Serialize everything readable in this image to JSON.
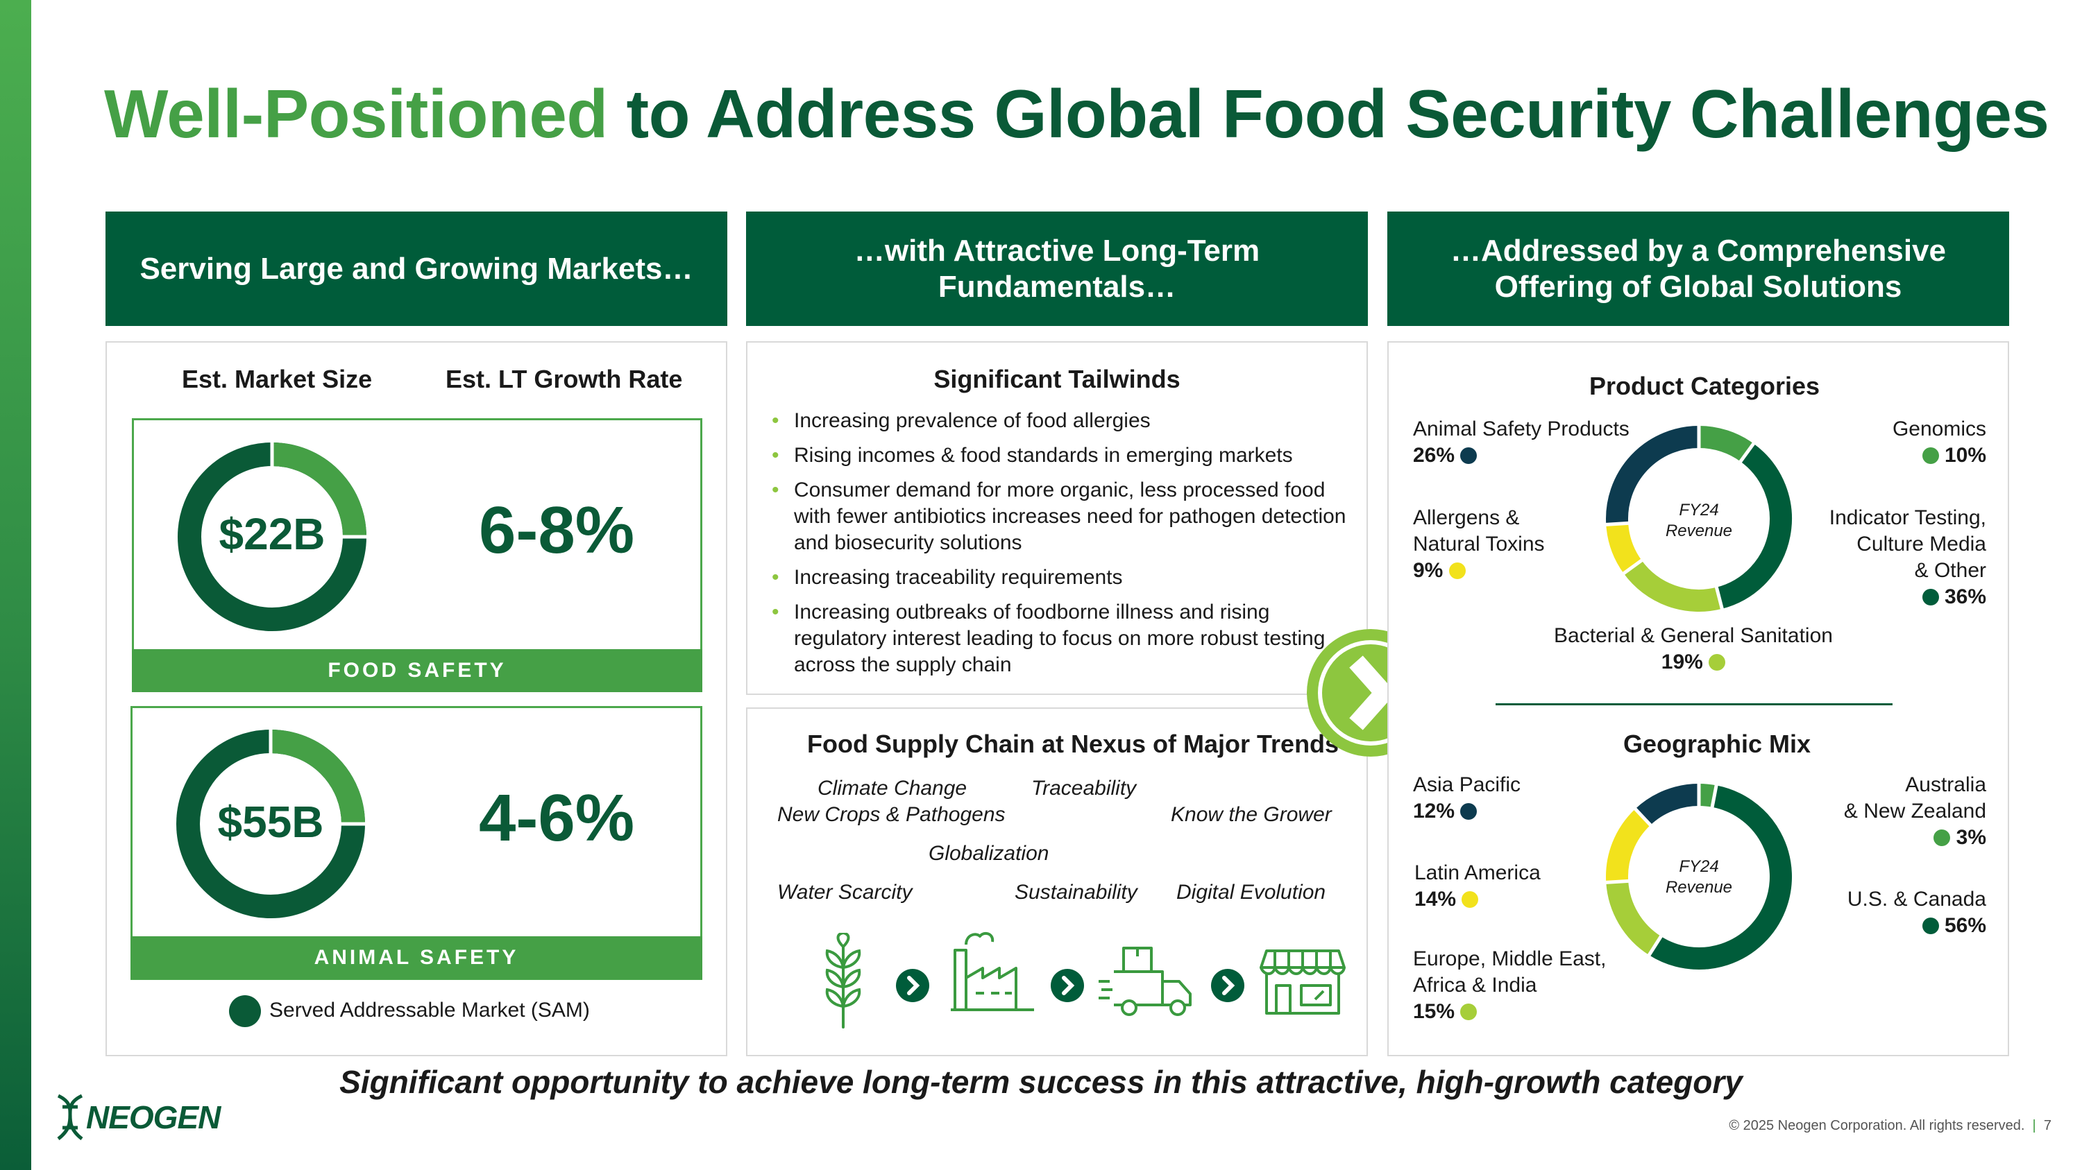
{
  "title": {
    "highlight": "Well-Positioned",
    "rest": " to Address Global Food Security Challenges"
  },
  "columns": {
    "c1": "Serving Large and Growing Markets…",
    "c2": "…with Attractive Long-Term Fundamentals…",
    "c3": "…Addressed by a Comprehensive Offering of Global Solutions"
  },
  "markets": {
    "hdr_size": "Est. Market Size",
    "hdr_growth": "Est. LT Growth Rate",
    "food": {
      "size": "$22B",
      "growth": "6-8%",
      "label": "FOOD SAFETY",
      "sam_fraction": 0.25
    },
    "animal": {
      "size": "$55B",
      "growth": "4-6%",
      "label": "ANIMAL SAFETY",
      "sam_fraction": 0.25
    },
    "legend": "Served Addressable Market (SAM)"
  },
  "tailwinds": {
    "title": "Significant Tailwinds",
    "items": [
      "Increasing prevalence of food allergies",
      "Rising incomes & food standards in emerging markets",
      "Consumer demand for more organic, less processed food with fewer antibiotics increases need for pathogen detection and biosecurity solutions",
      "Increasing traceability requirements",
      "Increasing outbreaks of foodborne illness and rising regulatory interest leading to focus on more robust testing across the supply chain"
    ]
  },
  "supply_chain": {
    "title": "Food Supply Chain at Nexus of Major Trends",
    "trends": {
      "climate": "Climate Change",
      "traceability": "Traceability",
      "crops": "New Crops & Pathogens",
      "grower": "Know the Grower",
      "globalization": "Globalization",
      "water": "Water Scarcity",
      "sustainability": "Sustainability",
      "digital": "Digital Evolution"
    },
    "icons": [
      "wheat-icon",
      "factory-icon",
      "delivery-truck-icon",
      "storefront-icon"
    ]
  },
  "product_categories": {
    "title": "Product Categories",
    "center": [
      "FY24",
      "Revenue"
    ],
    "labels": {
      "animal": {
        "name": "Animal Safety Products",
        "pct": "26%"
      },
      "genomics": {
        "name": "Genomics",
        "pct": "10%"
      },
      "allergens": {
        "name1": "Allergens &",
        "name2": "Natural Toxins",
        "pct": "9%"
      },
      "indicator": {
        "name1": "Indicator Testing,",
        "name2": "Culture Media",
        "name3": "& Other",
        "pct": "36%"
      },
      "bacterial": {
        "name": "Bacterial & General Sanitation",
        "pct": "19%"
      }
    }
  },
  "geographic_mix": {
    "title": "Geographic Mix",
    "center": [
      "FY24",
      "Revenue"
    ],
    "labels": {
      "apac": {
        "name": "Asia Pacific",
        "pct": "12%"
      },
      "anz": {
        "name1": "Australia",
        "name2": "& New Zealand",
        "pct": "3%"
      },
      "latam": {
        "name": "Latin America",
        "pct": "14%"
      },
      "us": {
        "name": "U.S. & Canada",
        "pct": "56%"
      },
      "emea": {
        "name1": "Europe, Middle East,",
        "name2": "Africa & India",
        "pct": "15%"
      }
    }
  },
  "chart_data": [
    {
      "type": "pie",
      "title": "Product Categories",
      "categories": [
        "Genomics",
        "Indicator Testing, Culture Media & Other",
        "Bacterial & General Sanitation",
        "Allergens & Natural Toxins",
        "Animal Safety Products"
      ],
      "values": [
        10,
        36,
        19,
        9,
        26
      ],
      "colors": [
        "#45a046",
        "#005c3a",
        "#a6ce39",
        "#f2e21c",
        "#0d3b4f"
      ]
    },
    {
      "type": "pie",
      "title": "Geographic Mix",
      "categories": [
        "Australia & New Zealand",
        "U.S. & Canada",
        "Europe, Middle East, Africa & India",
        "Latin America",
        "Asia Pacific"
      ],
      "values": [
        3,
        56,
        15,
        14,
        12
      ],
      "colors": [
        "#45a046",
        "#005c3a",
        "#a6ce39",
        "#f2e21c",
        "#0d3b4f"
      ]
    }
  ],
  "footer": {
    "tagline": "Significant opportunity to achieve long-term success in this attractive, high-growth category",
    "logo": "NEOGEN",
    "copyright": "© 2025 Neogen Corporation. All rights reserved.",
    "page": "7"
  },
  "colors": {
    "dark_green": "#005c3a",
    "green": "#45a046",
    "light_green": "#a6ce39",
    "yellow": "#f2e21c",
    "navy": "#0d3b4f"
  }
}
